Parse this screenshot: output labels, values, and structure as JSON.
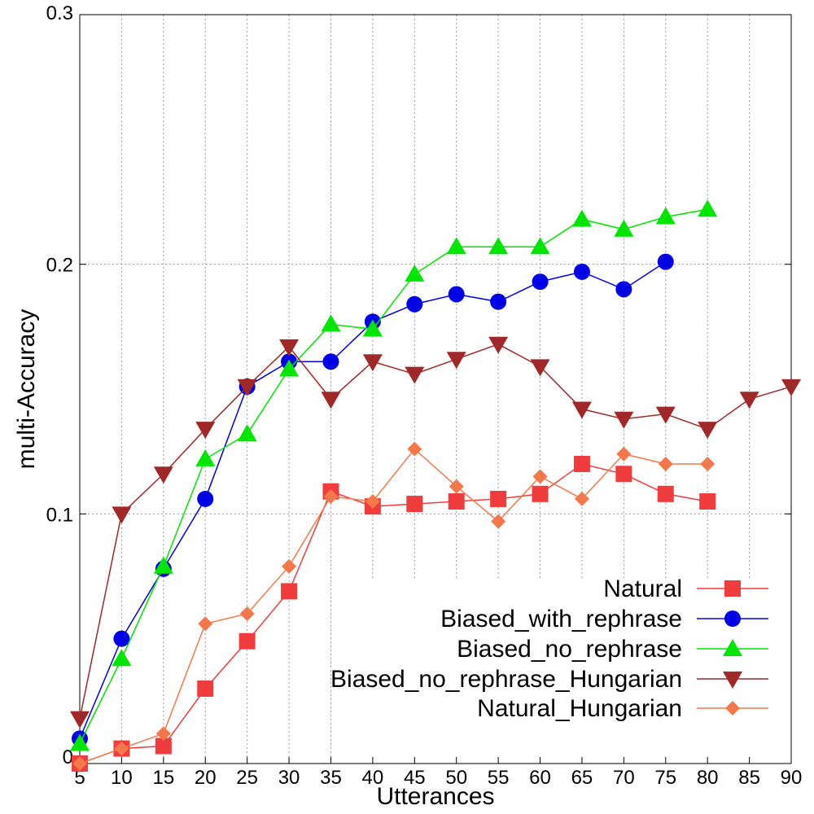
{
  "chart_data": {
    "type": "line",
    "title": "",
    "xlabel": "Utterances",
    "ylabel": "multi-Accuracy",
    "xlim": [
      5,
      90
    ],
    "ylim": [
      0,
      0.3
    ],
    "x_ticks": [
      "5",
      "10",
      "15",
      "20",
      "25",
      "30",
      "35",
      "40",
      "45",
      "50",
      "55",
      "60",
      "65",
      "70",
      "75",
      "80",
      "85",
      "90"
    ],
    "y_ticks": [
      {
        "value": 0,
        "label": "0"
      },
      {
        "value": 0.1,
        "label": "0.1"
      },
      {
        "value": 0.2,
        "label": "0.2"
      },
      {
        "value": 0.3,
        "label": "0.3"
      }
    ],
    "grid": true,
    "legend_position": "bottom-right",
    "series": [
      {
        "name": "Natural",
        "color": "#f03c3c",
        "marker": "square",
        "x": [
          5,
          10,
          15,
          20,
          25,
          30,
          35,
          40,
          45,
          50,
          55,
          60,
          65,
          70,
          75,
          80
        ],
        "y": [
          0,
          0.006,
          0.007,
          0.03,
          0.049,
          0.069,
          0.109,
          0.103,
          0.104,
          0.105,
          0.106,
          0.108,
          0.12,
          0.116,
          0.108,
          0.105
        ]
      },
      {
        "name": "Biased_with_rephrase",
        "color": "#0000e6",
        "marker": "circle",
        "x": [
          5,
          10,
          15,
          20,
          25,
          30,
          35,
          40,
          45,
          50,
          55,
          60,
          65,
          70,
          75
        ],
        "y": [
          0.01,
          0.05,
          0.078,
          0.106,
          0.151,
          0.161,
          0.161,
          0.177,
          0.184,
          0.188,
          0.185,
          0.193,
          0.197,
          0.19,
          0.201
        ]
      },
      {
        "name": "Biased_no_rephrase",
        "color": "#00e600",
        "marker": "triangle-up",
        "x": [
          5,
          10,
          15,
          20,
          25,
          30,
          35,
          40,
          45,
          50,
          55,
          60,
          65,
          70,
          75,
          80
        ],
        "y": [
          0.008,
          0.042,
          0.079,
          0.122,
          0.132,
          0.158,
          0.176,
          0.174,
          0.196,
          0.207,
          0.207,
          0.207,
          0.218,
          0.214,
          0.219,
          0.222
        ]
      },
      {
        "name": "Biased_no_rephrase_Hungarian",
        "color": "#a02828",
        "marker": "triangle-down",
        "x": [
          5,
          10,
          15,
          20,
          25,
          30,
          35,
          40,
          45,
          50,
          55,
          60,
          65,
          70,
          75,
          80,
          85,
          90
        ],
        "y": [
          0.018,
          0.1,
          0.116,
          0.134,
          0.151,
          0.167,
          0.146,
          0.161,
          0.156,
          0.162,
          0.168,
          0.159,
          0.142,
          0.138,
          0.14,
          0.134,
          0.146,
          0.151
        ]
      },
      {
        "name": "Natural_Hungarian",
        "color": "#f5784b",
        "marker": "diamond",
        "x": [
          5,
          10,
          15,
          20,
          25,
          30,
          35,
          40,
          45,
          50,
          55,
          60,
          65,
          70,
          75,
          80
        ],
        "y": [
          0,
          0.006,
          0.012,
          0.056,
          0.06,
          0.079,
          0.107,
          0.105,
          0.126,
          0.111,
          0.097,
          0.115,
          0.106,
          0.124,
          0.12,
          0.12
        ]
      }
    ]
  }
}
